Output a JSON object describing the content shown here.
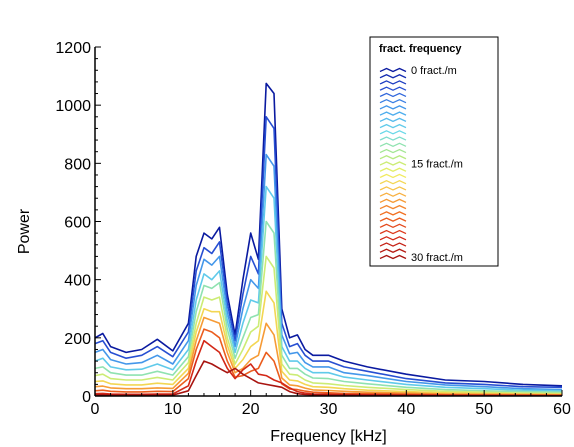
{
  "chart_data": {
    "type": "line",
    "xlabel": "Frequency [kHz]",
    "ylabel": "Power",
    "xlim": [
      0,
      60
    ],
    "ylim": [
      0,
      1200
    ],
    "x_ticks": [
      0,
      10,
      20,
      30,
      40,
      50,
      60
    ],
    "y_ticks": [
      0,
      200,
      400,
      600,
      800,
      1000,
      1200
    ],
    "grid": false,
    "legend": {
      "title": "fract. frequency",
      "placement": "top-right",
      "labels": [
        "0 fract./m",
        "15 fract./m",
        "30 fract./m"
      ],
      "count": 31
    },
    "colormap": [
      "#0a1aa0",
      "#2a55d8",
      "#4aa8ee",
      "#6ad8e8",
      "#a8e88a",
      "#f0f060",
      "#f8b040",
      "#f06a20",
      "#d82a18",
      "#a81410"
    ],
    "x": [
      0,
      1,
      2,
      4,
      6,
      8,
      10,
      12,
      13,
      14,
      15,
      16,
      17,
      18,
      19,
      20,
      21,
      22,
      23,
      24,
      25,
      26,
      27,
      28,
      30,
      32,
      35,
      40,
      45,
      50,
      55,
      60
    ],
    "series": [
      {
        "values": [
          200,
          215,
          170,
          150,
          160,
          195,
          155,
          250,
          480,
          560,
          540,
          580,
          350,
          210,
          400,
          560,
          470,
          1075,
          1040,
          300,
          200,
          210,
          160,
          140,
          140,
          120,
          100,
          75,
          55,
          50,
          40,
          35
        ]
      },
      {
        "values": [
          180,
          190,
          150,
          130,
          140,
          170,
          135,
          220,
          430,
          510,
          490,
          530,
          320,
          190,
          350,
          480,
          420,
          960,
          920,
          250,
          170,
          180,
          140,
          120,
          120,
          100,
          85,
          60,
          45,
          40,
          32,
          30
        ]
      },
      {
        "values": [
          150,
          160,
          125,
          110,
          115,
          140,
          110,
          190,
          380,
          470,
          450,
          480,
          290,
          170,
          300,
          400,
          370,
          830,
          790,
          210,
          145,
          150,
          115,
          100,
          100,
          80,
          70,
          50,
          38,
          32,
          25,
          22
        ]
      },
      {
        "values": [
          120,
          130,
          100,
          90,
          92,
          110,
          90,
          160,
          330,
          420,
          400,
          430,
          260,
          150,
          250,
          330,
          320,
          720,
          680,
          170,
          120,
          120,
          95,
          80,
          80,
          65,
          55,
          40,
          30,
          25,
          20,
          18
        ]
      },
      {
        "values": [
          95,
          100,
          80,
          72,
          72,
          85,
          72,
          135,
          290,
          380,
          370,
          390,
          230,
          130,
          200,
          270,
          280,
          600,
          560,
          140,
          95,
          95,
          75,
          62,
          60,
          50,
          42,
          30,
          22,
          18,
          15,
          13
        ]
      },
      {
        "values": [
          70,
          75,
          60,
          55,
          55,
          64,
          55,
          115,
          250,
          340,
          330,
          340,
          200,
          110,
          160,
          220,
          240,
          480,
          440,
          110,
          75,
          72,
          55,
          45,
          42,
          36,
          30,
          22,
          16,
          13,
          10,
          9
        ]
      },
      {
        "values": [
          50,
          52,
          42,
          38,
          38,
          44,
          40,
          95,
          220,
          300,
          290,
          290,
          175,
          95,
          125,
          170,
          190,
          360,
          320,
          85,
          55,
          52,
          40,
          32,
          30,
          25,
          20,
          15,
          11,
          9,
          7,
          6
        ]
      },
      {
        "values": [
          32,
          34,
          28,
          25,
          25,
          28,
          26,
          78,
          190,
          270,
          260,
          250,
          150,
          80,
          95,
          125,
          140,
          250,
          210,
          62,
          38,
          35,
          27,
          21,
          19,
          16,
          13,
          10,
          7,
          6,
          5,
          4
        ]
      },
      {
        "values": [
          18,
          20,
          16,
          14,
          14,
          16,
          15,
          60,
          160,
          230,
          220,
          200,
          120,
          65,
          70,
          85,
          95,
          150,
          120,
          42,
          24,
          22,
          17,
          13,
          11,
          9,
          8,
          6,
          4,
          3,
          3,
          2
        ]
      },
      {
        "values": [
          8,
          9,
          7,
          6,
          6,
          7,
          7,
          35,
          120,
          190,
          170,
          150,
          95,
          60,
          90,
          110,
          75,
          70,
          55,
          45,
          28,
          15,
          10,
          7,
          6,
          5,
          4,
          3,
          2,
          2,
          1,
          1
        ]
      },
      {
        "values": [
          4,
          4,
          3,
          3,
          3,
          3,
          3,
          18,
          70,
          120,
          110,
          95,
          80,
          95,
          75,
          60,
          45,
          40,
          35,
          30,
          15,
          8,
          5,
          4,
          3,
          3,
          2,
          2,
          1,
          1,
          1,
          1
        ]
      }
    ]
  }
}
